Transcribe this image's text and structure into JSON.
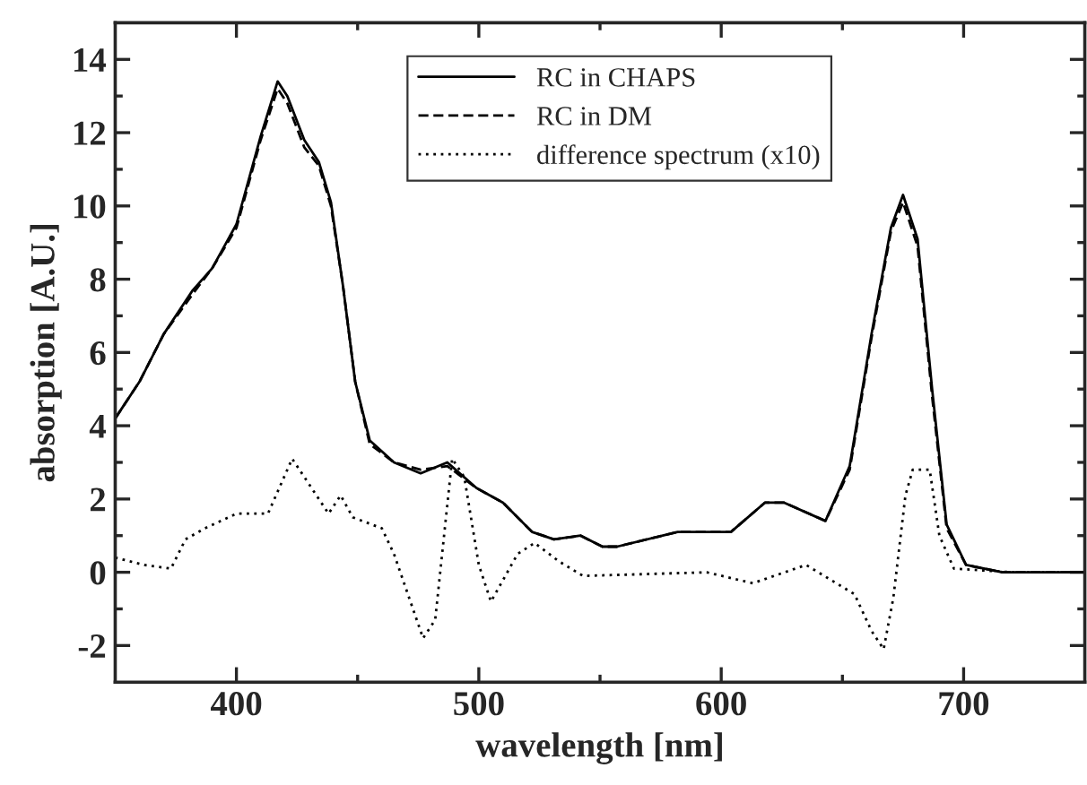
{
  "chart_data": {
    "type": "line",
    "xlabel": "wavelength [nm]",
    "ylabel": "absorption [A.U.]",
    "xlim": [
      350,
      750
    ],
    "ylim": [
      -3,
      15
    ],
    "xticks": [
      400,
      {
        "value": 450,
        "label": null
      },
      500,
      {
        "value": 550,
        "label": null
      },
      600,
      {
        "value": 650,
        "label": null
      },
      700
    ],
    "yticks": [
      -2,
      {
        "value": -1,
        "label": null
      },
      0,
      {
        "value": 1,
        "label": null
      },
      2,
      {
        "value": 3,
        "label": null
      },
      4,
      {
        "value": 5,
        "label": null
      },
      6,
      {
        "value": 7,
        "label": null
      },
      8,
      {
        "value": 9,
        "label": null
      },
      10,
      {
        "value": 11,
        "label": null
      },
      12,
      {
        "value": 13,
        "label": null
      },
      14
    ],
    "grid": false,
    "legend": "top",
    "marker": "none",
    "series": [
      {
        "name": "RC in CHAPS",
        "color": "#000000",
        "line_style": "solid",
        "x": [
          350,
          360,
          370,
          382,
          390,
          400,
          410,
          417,
          421,
          428,
          434,
          439,
          444,
          449,
          455,
          465,
          476,
          487,
          499,
          510,
          522,
          531,
          542,
          551,
          557,
          582,
          599,
          604,
          618,
          626,
          643,
          653,
          662,
          670,
          675,
          681,
          687,
          693,
          701,
          716,
          750
        ],
        "values": [
          4.2,
          5.2,
          6.5,
          7.7,
          8.3,
          9.5,
          11.9,
          13.4,
          13.0,
          11.8,
          11.2,
          10.1,
          7.8,
          5.2,
          3.6,
          3.0,
          2.7,
          3.0,
          2.3,
          1.9,
          1.1,
          0.9,
          1.0,
          0.7,
          0.7,
          1.1,
          1.1,
          1.1,
          1.9,
          1.9,
          1.4,
          2.9,
          6.5,
          9.4,
          10.3,
          9.1,
          5.0,
          1.3,
          0.2,
          0.0,
          0.0
        ]
      },
      {
        "name": "RC in DM",
        "color": "#000000",
        "line_style": "dashed",
        "x": [
          350,
          360,
          370,
          382,
          390,
          400,
          410,
          417,
          421,
          428,
          434,
          439,
          444,
          449,
          455,
          465,
          476,
          487,
          499,
          510,
          522,
          531,
          542,
          551,
          557,
          582,
          599,
          604,
          618,
          626,
          643,
          653,
          662,
          670,
          675,
          681,
          687,
          693,
          701,
          716,
          750
        ],
        "values": [
          4.2,
          5.2,
          6.5,
          7.6,
          8.3,
          9.4,
          11.8,
          13.2,
          12.8,
          11.6,
          11.1,
          10.0,
          7.8,
          5.2,
          3.5,
          3.0,
          2.8,
          2.9,
          2.3,
          1.9,
          1.1,
          0.9,
          1.0,
          0.7,
          0.7,
          1.1,
          1.1,
          1.1,
          1.9,
          1.9,
          1.4,
          2.8,
          6.4,
          9.3,
          10.1,
          8.9,
          4.8,
          1.2,
          0.2,
          0.0,
          0.0
        ]
      },
      {
        "name": "difference spectrum (x10)",
        "color": "#000000",
        "line_style": "dotted",
        "x": [
          350,
          362,
          373,
          379,
          387,
          400,
          413,
          423,
          428,
          438,
          443,
          448,
          460,
          465,
          477,
          482,
          489,
          494,
          500,
          505,
          516,
          523,
          533,
          543,
          594,
          613,
          635,
          655,
          662,
          667,
          671,
          676,
          679,
          686,
          690,
          696,
          720,
          750
        ],
        "values": [
          0.4,
          0.2,
          0.1,
          0.9,
          1.2,
          1.6,
          1.6,
          3.1,
          2.6,
          1.6,
          2.1,
          1.5,
          1.2,
          0.5,
          -1.8,
          -1.3,
          3.1,
          2.6,
          0.2,
          -0.8,
          0.5,
          0.8,
          0.3,
          -0.1,
          0.0,
          -0.3,
          0.2,
          -0.6,
          -1.6,
          -2.1,
          -0.7,
          2.1,
          2.8,
          2.8,
          1.0,
          0.1,
          0.0,
          0.0
        ]
      }
    ]
  }
}
